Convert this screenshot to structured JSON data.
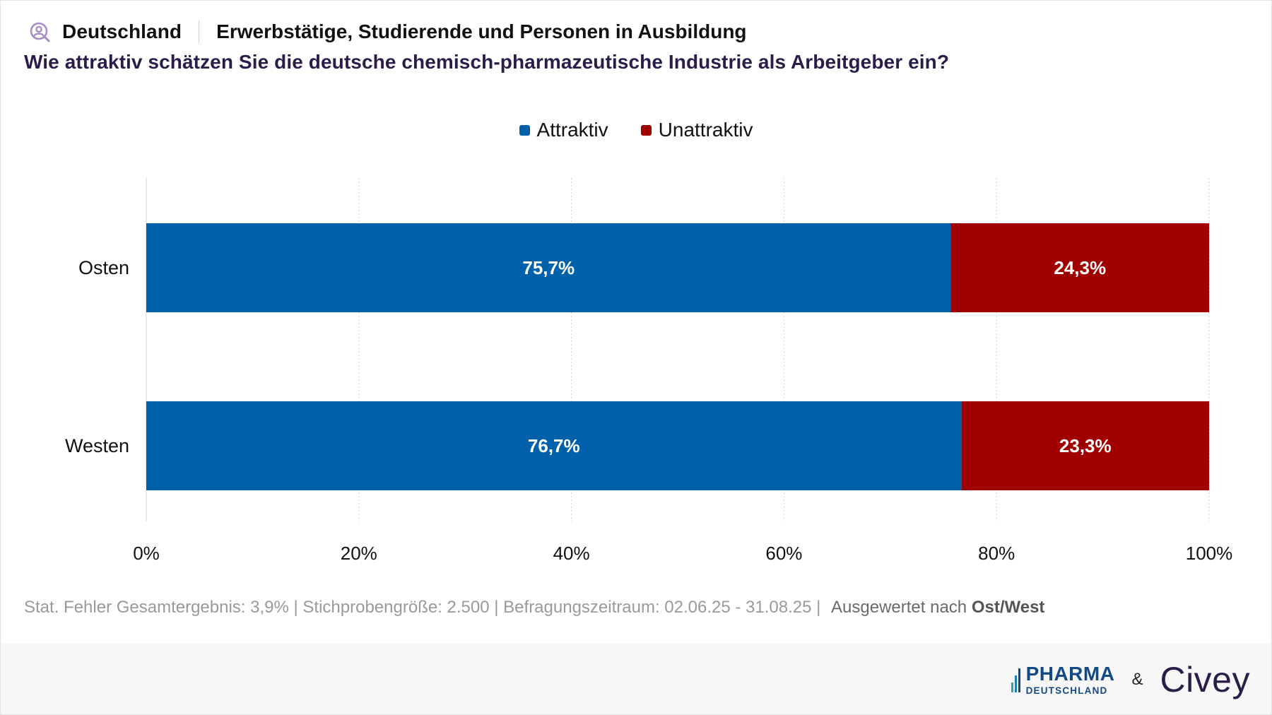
{
  "header": {
    "region": "Deutschland",
    "audience": "Erwerbstätige, Studierende und Personen in Ausbildung",
    "question": "Wie attraktiv schätzen Sie die deutsche chemisch-pharmazeutische Industrie als Arbeitgeber ein?",
    "icon": "person-search-icon"
  },
  "colors": {
    "attraktiv": "#0061aa",
    "unattraktiv": "#a00000",
    "grid": "#d6d6d6",
    "icon": "#a88cc4"
  },
  "chart_data": {
    "type": "bar",
    "orientation": "horizontal",
    "stacked": true,
    "categories": [
      "Osten",
      "Westen"
    ],
    "series": [
      {
        "name": "Attraktiv",
        "values": [
          75.7,
          76.7
        ],
        "labels": [
          "75,7%",
          "76,7%"
        ]
      },
      {
        "name": "Unattraktiv",
        "values": [
          24.3,
          23.3
        ],
        "labels": [
          "24,3%",
          "23,3%"
        ]
      }
    ],
    "xlim": [
      0,
      100
    ],
    "xticks": [
      0,
      20,
      40,
      60,
      80,
      100
    ],
    "xtick_labels": [
      "0%",
      "20%",
      "40%",
      "60%",
      "80%",
      "100%"
    ],
    "grid": true,
    "legend": "top-center"
  },
  "footnote": {
    "stats": "Stat. Fehler Gesamtergebnis: 3,9% | Stichprobengröße: 2.500 | Befragungszeitraum: 02.06.25 - 31.08.25 |",
    "eval_prefix": "Ausgewertet nach",
    "eval_value": "Ost/West"
  },
  "footer": {
    "pharma_main": "PHARMA",
    "pharma_sub": "DEUTSCHLAND",
    "amp": "&",
    "civey": "Civey"
  }
}
